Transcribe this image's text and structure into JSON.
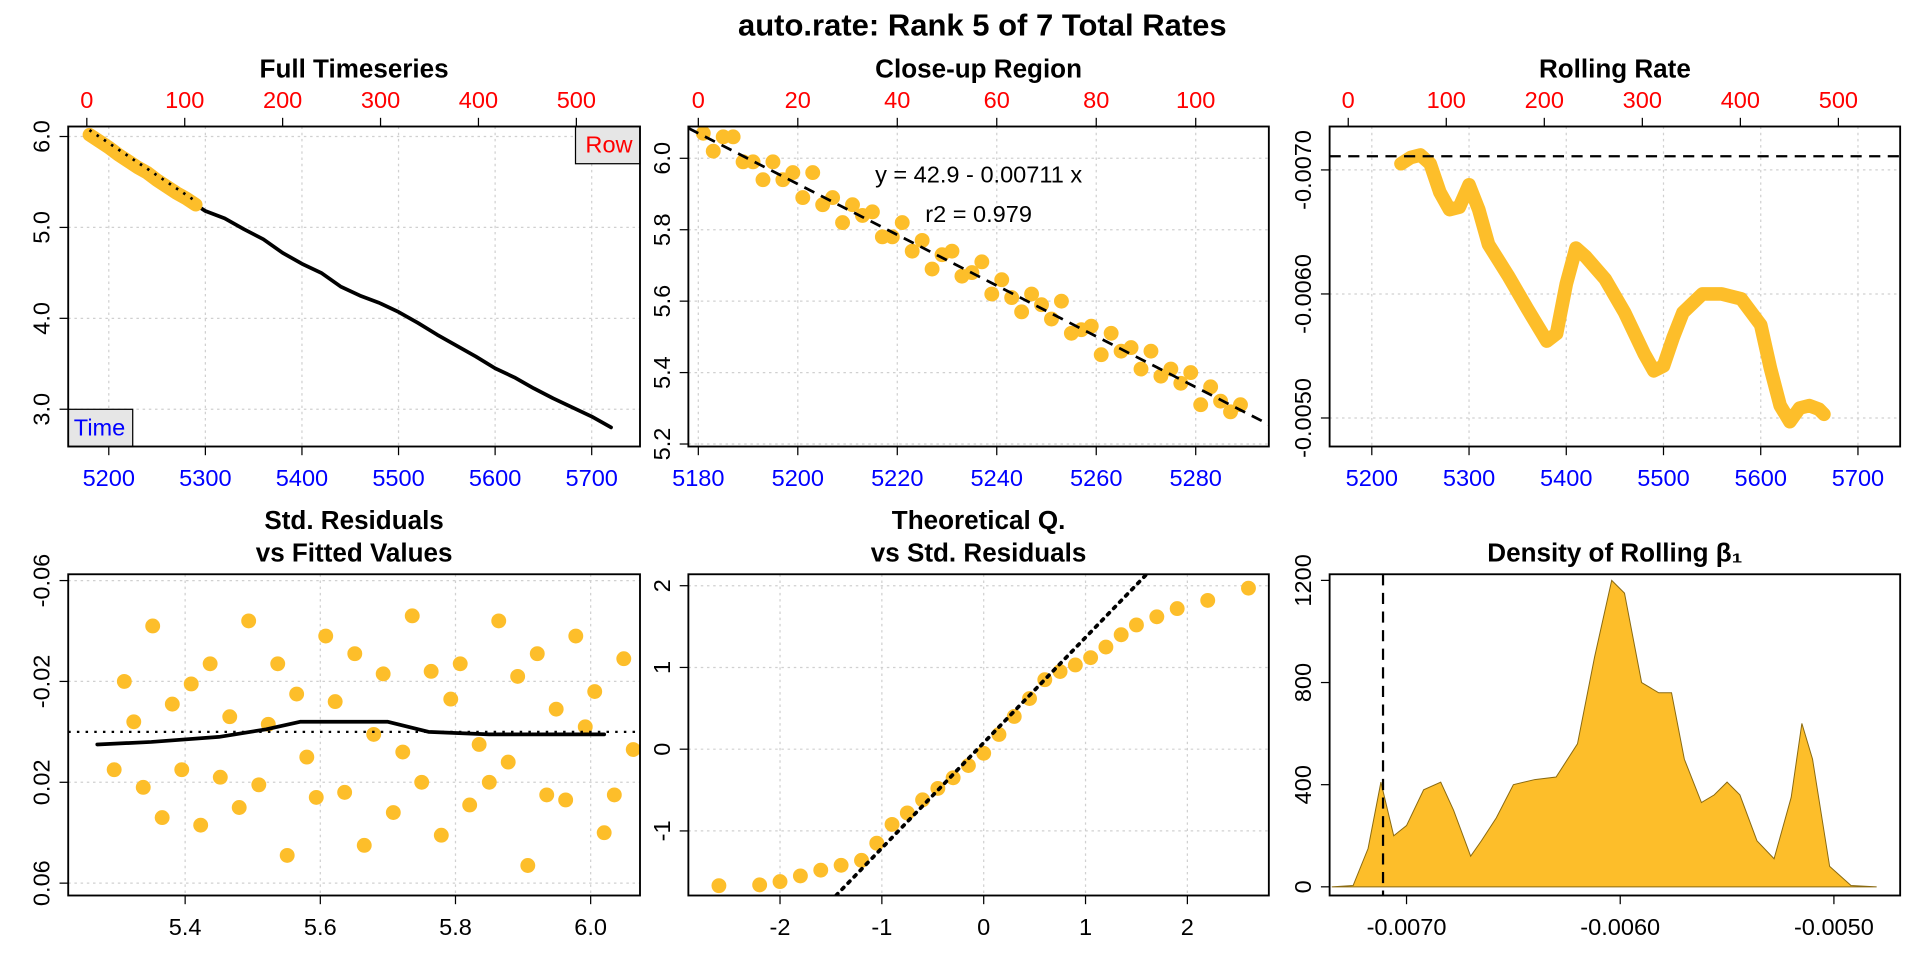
{
  "title": "auto.rate: Rank 5 of 7 Total Rates",
  "chart_data": [
    {
      "type": "scatter",
      "title": "Full Timeseries",
      "x_label": "Time",
      "x2_label": "Row",
      "xlim": [
        5158,
        5750
      ],
      "xticks": [
        5200,
        5300,
        5400,
        5500,
        5600,
        5700
      ],
      "xtick_color": "#0000ff",
      "x2lim": [
        -19,
        565
      ],
      "x2ticks": [
        0,
        100,
        200,
        300,
        400,
        500
      ],
      "x2tick_color": "#ff0000",
      "ylim": [
        2.59,
        6.11
      ],
      "yticks": [
        {
          "value": 3,
          "label": "3.0"
        },
        {
          "value": 4,
          "label": "4.0"
        },
        {
          "value": 5,
          "label": "5.0"
        },
        {
          "value": 6,
          "label": "6.0"
        }
      ],
      "grid": true,
      "fit": {
        "intercept": 42.9,
        "slope": -0.00711,
        "dash": "dotted"
      },
      "series": [
        {
          "kind": "line",
          "color": "#000000",
          "x": [
            5180,
            5200,
            5220,
            5240,
            5260,
            5280,
            5300,
            5320,
            5340,
            5360,
            5380,
            5400,
            5420,
            5440,
            5460,
            5480,
            5500,
            5520,
            5540,
            5560,
            5580,
            5600,
            5620,
            5640,
            5660,
            5680,
            5700,
            5720
          ],
          "y": [
            6.02,
            5.88,
            5.73,
            5.6,
            5.45,
            5.32,
            5.18,
            5.1,
            4.98,
            4.87,
            4.72,
            4.6,
            4.5,
            4.35,
            4.25,
            4.17,
            4.07,
            3.95,
            3.82,
            3.7,
            3.58,
            3.45,
            3.35,
            3.23,
            3.12,
            3.02,
            2.92,
            2.8
          ]
        },
        {
          "kind": "band",
          "color": "#fdbe2a",
          "x": [
            5180,
            5190,
            5200,
            5210,
            5220,
            5230,
            5240,
            5250,
            5260,
            5270,
            5280,
            5290
          ],
          "y": [
            6.02,
            5.95,
            5.88,
            5.8,
            5.73,
            5.66,
            5.6,
            5.52,
            5.45,
            5.38,
            5.32,
            5.25
          ]
        }
      ]
    },
    {
      "type": "scatter",
      "title": "Close-up Region",
      "xlim": [
        5178,
        5294.7
      ],
      "xticks": [
        5180,
        5200,
        5220,
        5240,
        5260,
        5280
      ],
      "xtick_color": "#0000ff",
      "x2lim": [
        -2,
        114.7
      ],
      "x2ticks": [
        0,
        20,
        40,
        60,
        80,
        100
      ],
      "x2tick_color": "#ff0000",
      "ylim": [
        5.193,
        6.089
      ],
      "yticks": [
        5.2,
        5.4,
        5.6,
        5.8,
        {
          "value": 6,
          "label": "6.0"
        }
      ],
      "grid": true,
      "annotations": [
        "y = 42.9 - 0.00711 x",
        "r2 = 0.979"
      ],
      "fit": {
        "intercept": 42.9,
        "slope": -0.00711,
        "dash": "dashed"
      },
      "series": [
        {
          "kind": "points",
          "color": "#fdbe2a",
          "x": [
            5181,
            5183,
            5185,
            5187,
            5189,
            5191,
            5193,
            5195,
            5197,
            5199,
            5201,
            5203,
            5205,
            5207,
            5209,
            5211,
            5213,
            5215,
            5217,
            5219,
            5221,
            5223,
            5225,
            5227,
            5229,
            5231,
            5233,
            5235,
            5237,
            5239,
            5241,
            5243,
            5245,
            5247,
            5249,
            5251,
            5253,
            5255,
            5257,
            5259,
            5261,
            5263,
            5265,
            5267,
            5269,
            5271,
            5273,
            5275,
            5277,
            5279,
            5281,
            5283,
            5285,
            5287,
            5289
          ],
          "y": [
            6.07,
            6.02,
            6.06,
            6.06,
            5.99,
            5.99,
            5.94,
            5.99,
            5.94,
            5.96,
            5.89,
            5.96,
            5.87,
            5.89,
            5.82,
            5.87,
            5.84,
            5.85,
            5.78,
            5.78,
            5.82,
            5.74,
            5.77,
            5.69,
            5.73,
            5.74,
            5.67,
            5.68,
            5.71,
            5.62,
            5.66,
            5.61,
            5.57,
            5.62,
            5.59,
            5.55,
            5.6,
            5.51,
            5.52,
            5.53,
            5.45,
            5.51,
            5.46,
            5.47,
            5.41,
            5.46,
            5.39,
            5.41,
            5.37,
            5.4,
            5.31,
            5.36,
            5.32,
            5.29,
            5.31
          ]
        }
      ]
    },
    {
      "type": "scatter",
      "title": "Rolling Rate",
      "xlim": [
        5156.6,
        5743.4
      ],
      "xticks": [
        5200,
        5300,
        5400,
        5500,
        5600,
        5700
      ],
      "xtick_color": "#0000ff",
      "x2lim": [
        -19,
        563
      ],
      "x2ticks": [
        0,
        100,
        200,
        300,
        400,
        500
      ],
      "x2tick_color": "#ff0000",
      "ylim": [
        -0.00477,
        -0.00735
      ],
      "yticks": [
        {
          "value": -0.007,
          "label": "-0.0070"
        },
        {
          "value": -0.006,
          "label": "-0.0060"
        },
        {
          "value": -0.005,
          "label": "-0.0050"
        }
      ],
      "grid": true,
      "hline": {
        "value": -0.00711,
        "dash": "dashed"
      },
      "series": [
        {
          "kind": "band",
          "color": "#fdbe2a",
          "x": [
            5230,
            5240,
            5250,
            5260,
            5270,
            5280,
            5290,
            5300,
            5310,
            5320,
            5340,
            5360,
            5380,
            5390,
            5400,
            5410,
            5420,
            5440,
            5460,
            5480,
            5490,
            5500,
            5510,
            5520,
            5540,
            5560,
            5580,
            5600,
            5610,
            5620,
            5630,
            5640,
            5650,
            5660,
            5665
          ],
          "y": [
            -0.00705,
            -0.0071,
            -0.00712,
            -0.00705,
            -0.00682,
            -0.00668,
            -0.0067,
            -0.00688,
            -0.00668,
            -0.0064,
            -0.00615,
            -0.00588,
            -0.00562,
            -0.00568,
            -0.00608,
            -0.00637,
            -0.0063,
            -0.00612,
            -0.00585,
            -0.00552,
            -0.00538,
            -0.00542,
            -0.00565,
            -0.00585,
            -0.006,
            -0.006,
            -0.00596,
            -0.00575,
            -0.0054,
            -0.0051,
            -0.00497,
            -0.00508,
            -0.0051,
            -0.00507,
            -0.00503
          ]
        }
      ]
    },
    {
      "type": "scatter",
      "title": [
        "Std. Residuals",
        "vs Fitted Values"
      ],
      "xlim": [
        5.227,
        6.073
      ],
      "xticks": [
        5.4,
        5.6,
        5.8,
        {
          "value": 6,
          "label": "6.0"
        }
      ],
      "ylim": [
        0.0649,
        -0.0625
      ],
      "yticks": [
        -0.06,
        -0.02,
        0.02,
        0.06
      ],
      "grid": true,
      "hline": {
        "value": 0,
        "dash": "dotted"
      },
      "series": [
        {
          "kind": "points",
          "color": "#fdbe2a",
          "x": [
            6.063,
            6.049,
            6.035,
            6.02,
            6.006,
            5.992,
            5.978,
            5.963,
            5.949,
            5.935,
            5.921,
            5.907,
            5.892,
            5.878,
            5.864,
            5.85,
            5.835,
            5.821,
            5.807,
            5.793,
            5.779,
            5.764,
            5.75,
            5.736,
            5.722,
            5.708,
            5.693,
            5.679,
            5.665,
            5.651,
            5.636,
            5.622,
            5.608,
            5.594,
            5.58,
            5.565,
            5.551,
            5.537,
            5.523,
            5.509,
            5.494,
            5.48,
            5.466,
            5.452,
            5.437,
            5.423,
            5.409,
            5.395,
            5.381,
            5.366,
            5.352,
            5.338,
            5.324,
            5.31,
            5.295
          ],
          "y": [
            0.007,
            -0.029,
            0.025,
            0.04,
            -0.016,
            -0.002,
            -0.038,
            0.027,
            -0.009,
            0.025,
            -0.031,
            0.053,
            -0.022,
            0.012,
            -0.044,
            0.02,
            0.005,
            0.029,
            -0.027,
            -0.013,
            0.041,
            -0.024,
            0.02,
            -0.046,
            0.008,
            0.032,
            -0.023,
            0.001,
            0.045,
            -0.031,
            0.024,
            -0.012,
            -0.038,
            0.026,
            0.01,
            -0.015,
            0.049,
            -0.027,
            -0.003,
            0.021,
            -0.044,
            0.03,
            -0.006,
            0.018,
            -0.027,
            0.037,
            -0.019,
            0.015,
            -0.011,
            0.034,
            -0.042,
            0.022,
            -0.004,
            -0.02,
            0.015
          ]
        },
        {
          "kind": "line",
          "color": "#000000",
          "x": [
            5.27,
            5.35,
            5.45,
            5.52,
            5.57,
            5.62,
            5.7,
            5.76,
            5.85,
            5.95,
            6.02
          ],
          "y": [
            0.005,
            0.004,
            0.002,
            -0.001,
            -0.004,
            -0.004,
            -0.004,
            0.0,
            0.001,
            0.001,
            0.001
          ]
        }
      ]
    },
    {
      "type": "scatter",
      "title": [
        "Theoretical Q.",
        "vs Std. Residuals"
      ],
      "xlim": [
        -2.9,
        2.8
      ],
      "xticks": [
        -2,
        -1,
        0,
        1,
        2
      ],
      "ylim": [
        -1.79,
        2.14
      ],
      "yticks": [
        -1,
        0,
        1,
        2
      ],
      "grid": true,
      "series": [
        {
          "kind": "points",
          "color": "#fdbe2a",
          "x": [
            -2.6,
            -2.2,
            -2.0,
            -1.8,
            -1.6,
            -1.4,
            -1.2,
            -1.05,
            -0.9,
            -0.75,
            -0.6,
            -0.45,
            -0.3,
            -0.15,
            0,
            0.15,
            0.3,
            0.45,
            0.6,
            0.75,
            0.9,
            1.05,
            1.2,
            1.35,
            1.5,
            1.7,
            1.9,
            2.2,
            2.6
          ],
          "y": [
            -1.67,
            -1.66,
            -1.62,
            -1.55,
            -1.48,
            -1.42,
            -1.36,
            -1.15,
            -0.92,
            -0.78,
            -0.62,
            -0.48,
            -0.35,
            -0.2,
            -0.05,
            0.18,
            0.4,
            0.62,
            0.85,
            0.95,
            1.03,
            1.12,
            1.25,
            1.4,
            1.52,
            1.62,
            1.72,
            1.82,
            1.97
          ]
        },
        {
          "kind": "line",
          "color": "#000000",
          "dash": "dotted",
          "x": [
            -1.45,
            1.6
          ],
          "y": [
            -1.79,
            2.14
          ]
        }
      ]
    },
    {
      "type": "area",
      "title": "Density of Rolling β₁",
      "xlim": [
        -0.00736,
        -0.00469
      ],
      "xticks": [
        {
          "value": -0.007,
          "label": "-0.0070"
        },
        {
          "value": -0.006,
          "label": "-0.0060"
        },
        {
          "value": -0.005,
          "label": "-0.0050"
        }
      ],
      "ylim": [
        -34,
        1224
      ],
      "yticks": [
        0,
        400,
        800,
        1200
      ],
      "grid": false,
      "vline": {
        "value": -0.00711,
        "dash": "dashed"
      },
      "series": [
        {
          "kind": "area",
          "color": "#fdbe2a",
          "x": [
            -0.00735,
            -0.00725,
            -0.00718,
            -0.00712,
            -0.00706,
            -0.007,
            -0.00692,
            -0.00684,
            -0.00678,
            -0.0067,
            -0.00665,
            -0.00658,
            -0.0065,
            -0.0064,
            -0.0063,
            -0.0062,
            -0.00612,
            -0.00604,
            -0.00598,
            -0.0059,
            -0.00582,
            -0.00576,
            -0.0057,
            -0.00562,
            -0.00556,
            -0.0055,
            -0.00544,
            -0.00536,
            -0.00528,
            -0.0052,
            -0.00515,
            -0.0051,
            -0.00502,
            -0.00492,
            -0.0048
          ],
          "y": [
            0,
            5,
            150,
            410,
            200,
            240,
            380,
            410,
            300,
            120,
            180,
            270,
            400,
            420,
            430,
            560,
            900,
            1200,
            1150,
            800,
            760,
            760,
            500,
            330,
            360,
            410,
            360,
            180,
            110,
            350,
            640,
            500,
            80,
            5,
            0
          ]
        }
      ]
    }
  ]
}
